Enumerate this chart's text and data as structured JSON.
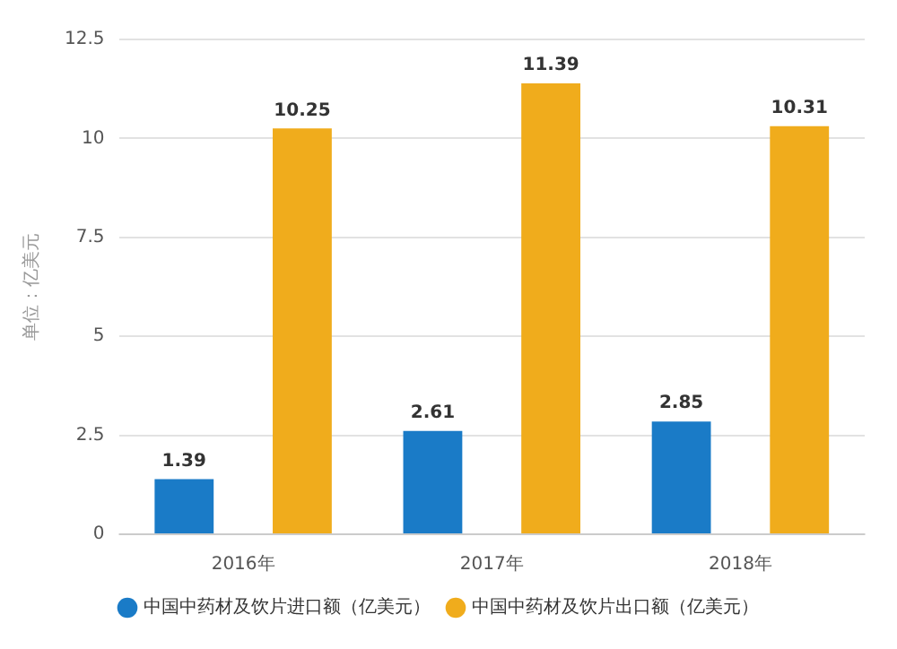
{
  "chart_data": {
    "type": "bar",
    "ylabel": "单位：亿美元",
    "categories": [
      "2016年",
      "2017年",
      "2018年"
    ],
    "series": [
      {
        "name": "中国中药材及饮片进口额（亿美元）",
        "color": "#1a7bc7",
        "values": [
          1.39,
          2.61,
          2.85
        ]
      },
      {
        "name": "中国中药材及饮片出口额（亿美元）",
        "color": "#f0ac1c",
        "values": [
          10.25,
          11.39,
          10.31
        ]
      }
    ],
    "ylim": [
      0,
      12.5
    ],
    "yticks": [
      0,
      2.5,
      5,
      7.5,
      10,
      12.5
    ],
    "grid": "y",
    "legend": "bottom",
    "data_labels": true
  }
}
